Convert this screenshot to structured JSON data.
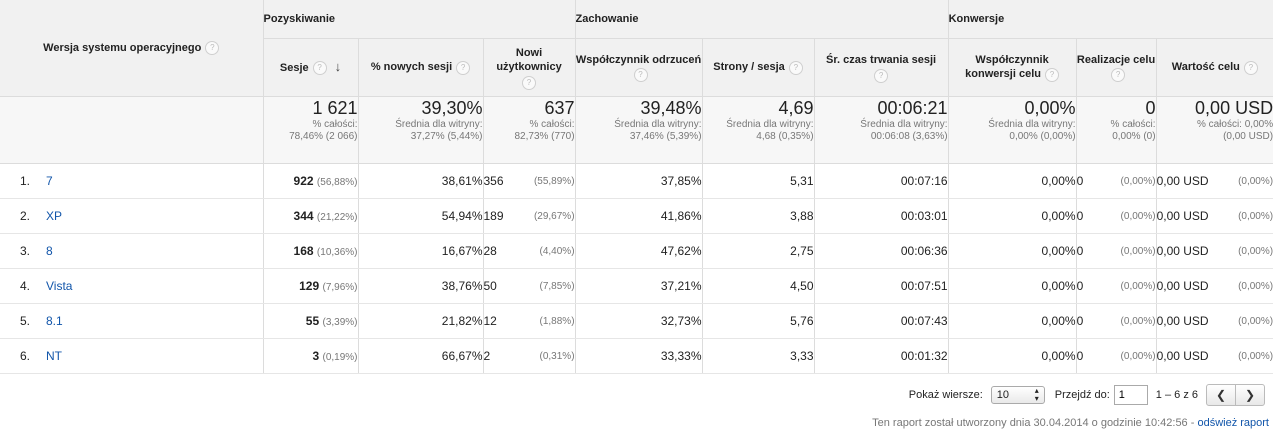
{
  "dimension_header": "Wersja systemu operacyjnego",
  "groups": {
    "acquisition": "Pozyskiwanie",
    "behavior": "Zachowanie",
    "conversions": "Konwersje"
  },
  "columns": {
    "sessions": "Sesje",
    "new_sessions": "% nowych sesji",
    "new_users": "Nowi użytkownicy",
    "bounce_rate": "Współczynnik odrzuceń",
    "pages_per_session": "Strony / sesja",
    "avg_duration": "Śr. czas trwania sesji",
    "conv_rate": "Współczynnik konwersji celu",
    "goal_completions": "Realizacje celu",
    "goal_value": "Wartość celu"
  },
  "totals": {
    "sessions": {
      "value": "1 621",
      "sub1": "% całości:",
      "sub2": "78,46% (2 066)"
    },
    "new_sessions": {
      "value": "39,30%",
      "sub1": "Średnia dla witryny:",
      "sub2": "37,27% (5,44%)"
    },
    "new_users": {
      "value": "637",
      "sub1": "% całości:",
      "sub2": "82,73% (770)"
    },
    "bounce_rate": {
      "value": "39,48%",
      "sub1": "Średnia dla witryny:",
      "sub2": "37,46% (5,39%)"
    },
    "pages_per_session": {
      "value": "4,69",
      "sub1": "Średnia dla witryny:",
      "sub2": "4,68 (0,35%)"
    },
    "avg_duration": {
      "value": "00:06:21",
      "sub1": "Średnia dla witryny:",
      "sub2": "00:06:08 (3,63%)"
    },
    "conv_rate": {
      "value": "0,00%",
      "sub1": "Średnia dla witryny:",
      "sub2": "0,00% (0,00%)"
    },
    "goal_completions": {
      "value": "0",
      "sub1": "% całości:",
      "sub2": "0,00% (0)"
    },
    "goal_value": {
      "value": "0,00 USD",
      "sub1": "% całości: 0,00%",
      "sub2": "(0,00 USD)"
    }
  },
  "rows": [
    {
      "idx": "1.",
      "name": "7",
      "sessions": "922",
      "sessions_pct": "(56,88%)",
      "new_sessions": "38,61%",
      "new_users": "356",
      "new_users_pct": "(55,89%)",
      "bounce_rate": "37,85%",
      "pages": "5,31",
      "duration": "00:07:16",
      "conv_rate": "0,00%",
      "goals": "0",
      "goals_pct": "(0,00%)",
      "value": "0,00 USD",
      "value_pct": "(0,00%)"
    },
    {
      "idx": "2.",
      "name": "XP",
      "sessions": "344",
      "sessions_pct": "(21,22%)",
      "new_sessions": "54,94%",
      "new_users": "189",
      "new_users_pct": "(29,67%)",
      "bounce_rate": "41,86%",
      "pages": "3,88",
      "duration": "00:03:01",
      "conv_rate": "0,00%",
      "goals": "0",
      "goals_pct": "(0,00%)",
      "value": "0,00 USD",
      "value_pct": "(0,00%)"
    },
    {
      "idx": "3.",
      "name": "8",
      "sessions": "168",
      "sessions_pct": "(10,36%)",
      "new_sessions": "16,67%",
      "new_users": "28",
      "new_users_pct": "(4,40%)",
      "bounce_rate": "47,62%",
      "pages": "2,75",
      "duration": "00:06:36",
      "conv_rate": "0,00%",
      "goals": "0",
      "goals_pct": "(0,00%)",
      "value": "0,00 USD",
      "value_pct": "(0,00%)"
    },
    {
      "idx": "4.",
      "name": "Vista",
      "sessions": "129",
      "sessions_pct": "(7,96%)",
      "new_sessions": "38,76%",
      "new_users": "50",
      "new_users_pct": "(7,85%)",
      "bounce_rate": "37,21%",
      "pages": "4,50",
      "duration": "00:07:51",
      "conv_rate": "0,00%",
      "goals": "0",
      "goals_pct": "(0,00%)",
      "value": "0,00 USD",
      "value_pct": "(0,00%)"
    },
    {
      "idx": "5.",
      "name": "8.1",
      "sessions": "55",
      "sessions_pct": "(3,39%)",
      "new_sessions": "21,82%",
      "new_users": "12",
      "new_users_pct": "(1,88%)",
      "bounce_rate": "32,73%",
      "pages": "5,76",
      "duration": "00:07:43",
      "conv_rate": "0,00%",
      "goals": "0",
      "goals_pct": "(0,00%)",
      "value": "0,00 USD",
      "value_pct": "(0,00%)"
    },
    {
      "idx": "6.",
      "name": "NT",
      "sessions": "3",
      "sessions_pct": "(0,19%)",
      "new_sessions": "66,67%",
      "new_users": "2",
      "new_users_pct": "(0,31%)",
      "bounce_rate": "33,33%",
      "pages": "3,33",
      "duration": "00:01:32",
      "conv_rate": "0,00%",
      "goals": "0",
      "goals_pct": "(0,00%)",
      "value": "0,00 USD",
      "value_pct": "(0,00%)"
    }
  ],
  "pagination": {
    "show_rows_label": "Pokaż wiersze:",
    "rows_value": "10",
    "goto_label": "Przejdź do:",
    "goto_value": "1",
    "range": "1 – 6 z 6"
  },
  "footer": {
    "text": "Ten raport został utworzony dnia 30.04.2014 o godzinie 10:42:56 - ",
    "link": "odśwież raport"
  },
  "icons": {
    "help": "question-mark-icon",
    "sort": "sort-desc-arrow-icon",
    "prev": "chevron-left-icon",
    "next": "chevron-right-icon",
    "select": "select-arrows-icon"
  }
}
